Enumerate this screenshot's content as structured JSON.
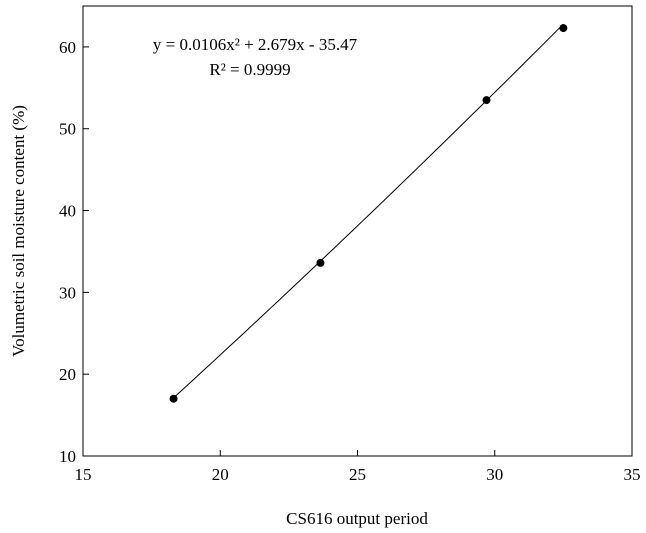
{
  "chart_data": {
    "type": "scatter",
    "xlabel": "CS616 output period",
    "ylabel": "Volumetric soil moisture content (%)",
    "xlim": [
      15,
      35
    ],
    "ylim": [
      10,
      65
    ],
    "xticks": [
      15,
      20,
      25,
      30,
      35
    ],
    "yticks": [
      10,
      20,
      30,
      40,
      50,
      60
    ],
    "xtick_labels": [
      "15",
      "20",
      "25",
      "30",
      "35"
    ],
    "ytick_labels": [
      "10",
      "20",
      "30",
      "40",
      "50",
      "60"
    ],
    "grid": false,
    "legend": "none",
    "series": [
      {
        "x": [
          18.3,
          23.65,
          29.7,
          32.5
        ],
        "y": [
          17.0,
          33.6,
          53.5,
          62.3
        ]
      }
    ],
    "trendline": {
      "type": "polynomial",
      "order": 2,
      "coefficients": [
        0.0106,
        2.679,
        -35.47
      ],
      "x_range": [
        18.3,
        32.5
      ],
      "equation_label": "y = 0.0106x² + 2.679x - 35.47",
      "r2_label": "R² = 0.9999"
    },
    "colors": {
      "marker": "#000000",
      "line": "#000000",
      "axes": "#000000"
    }
  }
}
